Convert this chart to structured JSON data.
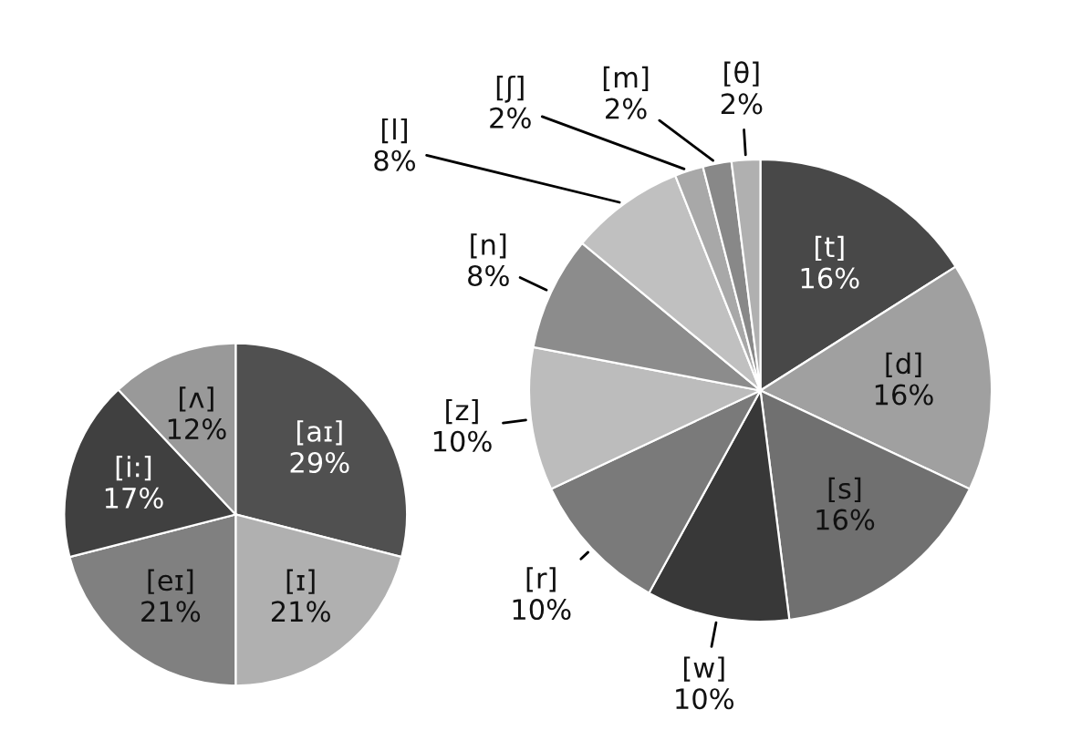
{
  "chart_data": [
    {
      "type": "pie",
      "categories": [
        "[aɪ]",
        "[ɪ]",
        "[eɪ]",
        "[i:]",
        "[ʌ]"
      ],
      "values": [
        29,
        21,
        21,
        17,
        12
      ],
      "value_labels": [
        "29%",
        "21%",
        "21%",
        "17%",
        "12%"
      ],
      "colors": [
        "#505050",
        "#b0b0b0",
        "#808080",
        "#404040",
        "#999999"
      ]
    },
    {
      "type": "pie",
      "categories": [
        "[t]",
        "[d]",
        "[s]",
        "[w]",
        "[r]",
        "[z]",
        "[n]",
        "[l]",
        "[ʃ]",
        "[m]",
        "[θ]"
      ],
      "values": [
        16,
        16,
        16,
        10,
        10,
        10,
        8,
        8,
        2,
        2,
        2
      ],
      "value_labels": [
        "16%",
        "16%",
        "16%",
        "10%",
        "10%",
        "10%",
        "8%",
        "8%",
        "2%",
        "2%",
        "2%"
      ],
      "colors": [
        "#484848",
        "#a0a0a0",
        "#707070",
        "#383838",
        "#7a7a7a",
        "#bcbcbc",
        "#8c8c8c",
        "#c0c0c0",
        "#a8a8a8",
        "#888888",
        "#b0b0b0"
      ]
    }
  ]
}
